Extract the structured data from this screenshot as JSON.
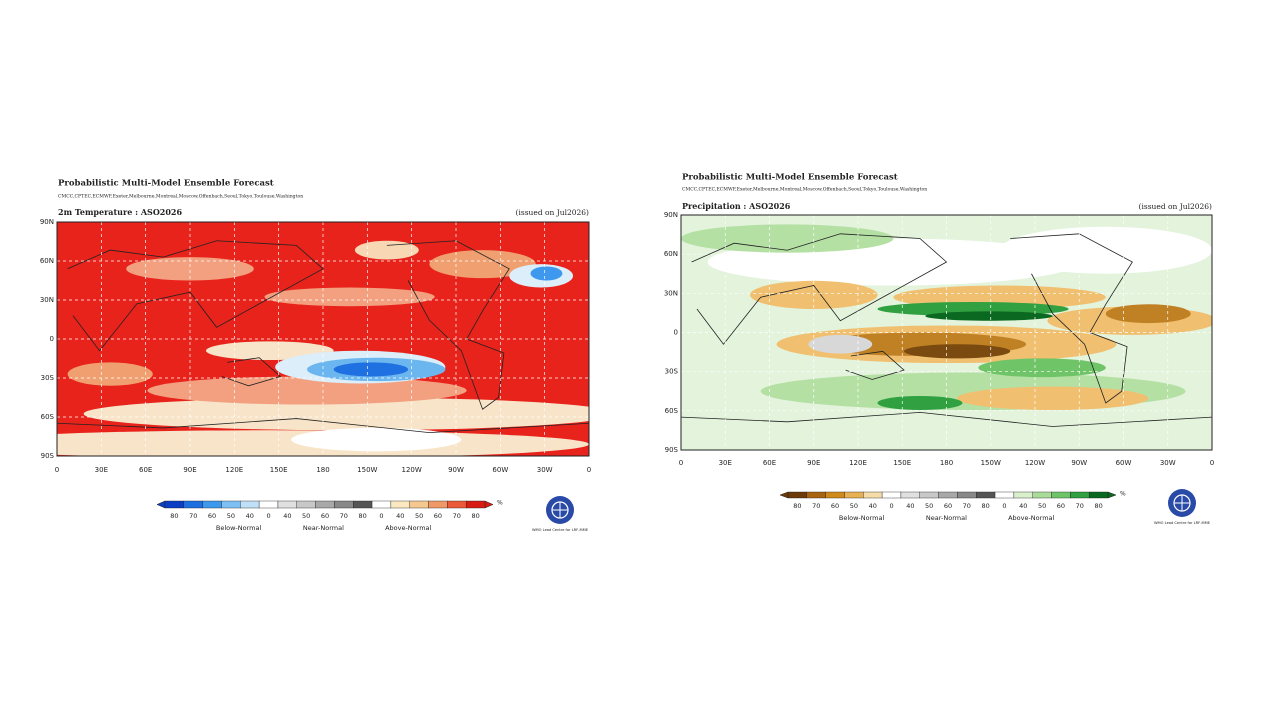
{
  "maps": [
    {
      "title": "Probabilistic Multi-Model Ensemble Forecast",
      "centres": "CMCC,CPTEC,ECMWF,Exeter,Melbourne,Montreal,Moscow,Offenbach,Seoul,Tokyo,Toulouse,Washington",
      "variable": "2m Temperature : ASO2026",
      "issued": "(issued on Jul2026)",
      "lat_labels": [
        "90N",
        "60N",
        "30N",
        "0",
        "30S",
        "60S",
        "90S"
      ],
      "lon_labels": [
        "0",
        "30E",
        "60E",
        "90E",
        "120E",
        "150E",
        "180",
        "150W",
        "120W",
        "90W",
        "60W",
        "30W",
        "0"
      ],
      "colorbar_labels": [
        "80",
        "70",
        "60",
        "50",
        "40",
        "0",
        "40",
        "50",
        "60",
        "70",
        "80",
        "0",
        "40",
        "50",
        "60",
        "70",
        "80"
      ],
      "unit": "%",
      "categories": [
        "Below-Normal",
        "Near-Normal",
        "Above-Normal"
      ],
      "logo_text": "WMO Lead Centre for LRF-MME"
    },
    {
      "title": "Probabilistic Multi-Model Ensemble Forecast",
      "centres": "CMCC,CPTEC,ECMWF,Exeter,Melbourne,Montreal,Moscow,Offenbach,Seoul,Tokyo,Toulouse,Washington",
      "variable": "Precipitation : ASO2026",
      "issued": "(issued on Jul2026)",
      "lat_labels": [
        "90N",
        "60N",
        "30N",
        "0",
        "30S",
        "60S",
        "90S"
      ],
      "lon_labels": [
        "0",
        "30E",
        "60E",
        "90E",
        "120E",
        "150E",
        "180",
        "150W",
        "120W",
        "90W",
        "60W",
        "30W",
        "0"
      ],
      "colorbar_labels": [
        "80",
        "70",
        "60",
        "50",
        "40",
        "0",
        "40",
        "50",
        "60",
        "70",
        "80",
        "0",
        "40",
        "50",
        "60",
        "70",
        "80"
      ],
      "unit": "%",
      "categories": [
        "Below-Normal",
        "Near-Normal",
        "Above-Normal"
      ],
      "logo_text": "WMO Lead Centre for LRF-MME"
    }
  ]
}
